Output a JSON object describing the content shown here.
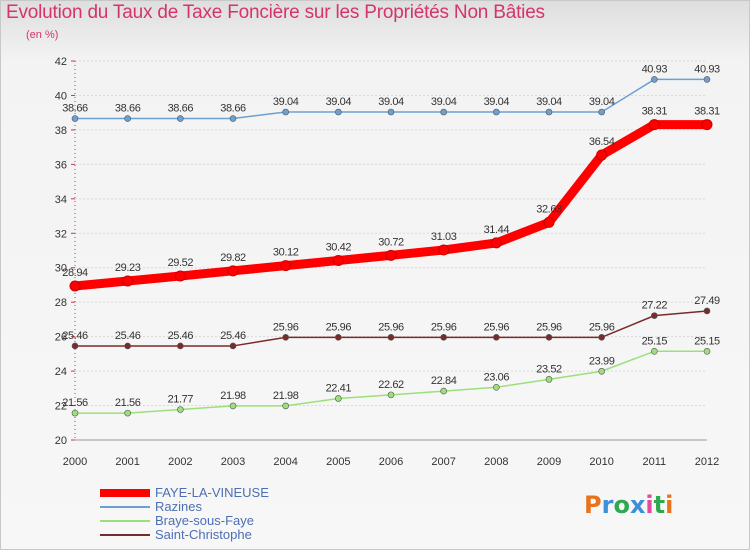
{
  "title": "Evolution du Taux de Taxe Foncière sur les Propriétés Non Bâties",
  "unit_label": "(en %)",
  "logo_text": "Proxiti",
  "logo_colors": [
    "#e8731c",
    "#3c8fd9",
    "#2fa84f",
    "#3c8fd9",
    "#e34ba0",
    "#2fa84f",
    "#e8731c"
  ],
  "chart_data": {
    "type": "line",
    "title": "Evolution du Taux de Taxe Foncière sur les Propriétés Non Bâties",
    "xlabel": "",
    "ylabel": "(en %)",
    "x": [
      2000,
      2001,
      2002,
      2003,
      2004,
      2005,
      2006,
      2007,
      2008,
      2009,
      2010,
      2011,
      2012
    ],
    "x_tick_labels": [
      "2000",
      "2001",
      "2002",
      "2003",
      "2004",
      "2005",
      "2006",
      "2007",
      "2008",
      "2009",
      "2010",
      "2011",
      "2012"
    ],
    "ylim": [
      20,
      42
    ],
    "y_ticks": [
      20,
      22,
      24,
      26,
      28,
      30,
      32,
      34,
      36,
      38,
      40,
      42
    ],
    "grid": "horizontal",
    "legend_position": "bottom-left",
    "series": [
      {
        "name": "FAYE-LA-VINEUSE",
        "color": "#ff0000",
        "emphasis": "thick",
        "values": [
          28.94,
          29.23,
          29.52,
          29.82,
          30.12,
          30.42,
          30.72,
          31.03,
          31.44,
          32.63,
          36.54,
          38.31,
          38.31
        ],
        "labels": [
          "28.94",
          "29.23",
          "29.52",
          "29.82",
          "30.12",
          "30.42",
          "30.72",
          "31.03",
          "31.44",
          "32.63",
          "36.54",
          "38.31",
          "38.31"
        ]
      },
      {
        "name": "Razines",
        "color": "#6ba1d2",
        "emphasis": "thin",
        "values": [
          38.66,
          38.66,
          38.66,
          38.66,
          39.04,
          39.04,
          39.04,
          39.04,
          39.04,
          39.04,
          39.04,
          40.93,
          40.93
        ],
        "labels": [
          "38.66",
          "38.66",
          "38.66",
          "38.66",
          "39.04",
          "39.04",
          "39.04",
          "39.04",
          "39.04",
          "39.04",
          "39.04",
          "40.93",
          "40.93"
        ]
      },
      {
        "name": "Braye-sous-Faye",
        "color": "#9be07a",
        "emphasis": "thin",
        "values": [
          21.56,
          21.56,
          21.77,
          21.98,
          21.98,
          22.41,
          22.62,
          22.84,
          23.06,
          23.52,
          23.99,
          25.15,
          25.15
        ],
        "labels": [
          "21.56",
          "21.56",
          "21.77",
          "21.98",
          "21.98",
          "22.41",
          "22.62",
          "22.84",
          "23.06",
          "23.52",
          "23.99",
          "25.15",
          "25.15"
        ]
      },
      {
        "name": "Saint-Christophe",
        "color": "#7a2a2a",
        "emphasis": "thin",
        "values": [
          25.46,
          25.46,
          25.46,
          25.46,
          25.96,
          25.96,
          25.96,
          25.96,
          25.96,
          25.96,
          25.96,
          27.22,
          27.49
        ],
        "labels": [
          "25.46",
          "25.46",
          "25.46",
          "25.46",
          "25.96",
          "25.96",
          "25.96",
          "25.96",
          "25.96",
          "25.96",
          "25.96",
          "27.22",
          "27.49"
        ]
      }
    ]
  }
}
